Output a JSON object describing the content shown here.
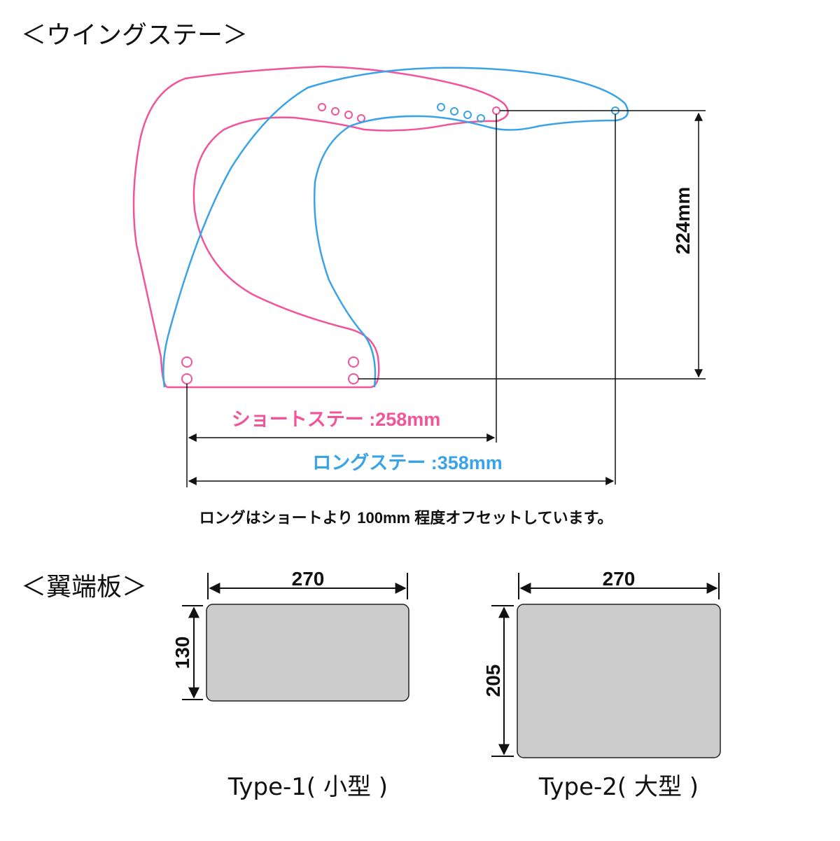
{
  "wing_stay": {
    "heading": "＜ウイングステー＞",
    "height_label": "224mm",
    "short_label": "ショートステー :258mm",
    "long_label": "ロングステー :358mm",
    "note": "ロングはショートより 100mm 程度オフセットしています。",
    "colors": {
      "short": "#f2549a",
      "long": "#3aa3e8",
      "dimension": "#111111"
    }
  },
  "end_plate": {
    "heading": "＜翼端板＞",
    "types": [
      {
        "width": "270",
        "height": "130",
        "label": "Type-1( 小型 )"
      },
      {
        "width": "270",
        "height": "205",
        "label": "Type-2( 大型 )"
      }
    ],
    "fill_color": "#cccccc"
  }
}
